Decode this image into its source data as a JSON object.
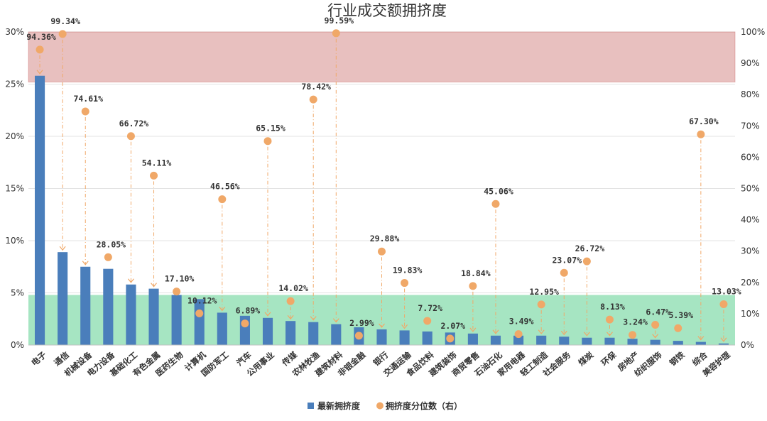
{
  "chart_data": {
    "type": "bar",
    "title": "行业成交额拥挤度",
    "categories": [
      "电子",
      "通信",
      "机械设备",
      "电力设备",
      "基础化工",
      "有色金属",
      "医药生物",
      "计算机",
      "国防军工",
      "汽车",
      "公用事业",
      "传媒",
      "农林牧渔",
      "建筑材料",
      "非银金融",
      "银行",
      "交通运输",
      "食品饮料",
      "建筑装饰",
      "商贸零售",
      "石油石化",
      "家用电器",
      "轻工制造",
      "社会服务",
      "煤炭",
      "环保",
      "房地产",
      "纺织服饰",
      "钢铁",
      "综合",
      "美容护理"
    ],
    "series": [
      {
        "name": "最新拥挤度",
        "type": "bar",
        "axis": "left",
        "color": "#4a7ebb",
        "values": [
          25.8,
          8.9,
          7.5,
          7.3,
          5.8,
          5.4,
          4.8,
          4.4,
          3.1,
          2.8,
          2.6,
          2.3,
          2.2,
          2.0,
          1.7,
          1.5,
          1.4,
          1.3,
          1.2,
          1.1,
          0.9,
          0.9,
          0.9,
          0.8,
          0.7,
          0.7,
          0.6,
          0.5,
          0.4,
          0.3,
          0.15
        ]
      },
      {
        "name": "拥挤度分位数（右）",
        "type": "scatter",
        "axis": "right",
        "color": "#f0a868",
        "values": [
          94.36,
          99.34,
          74.61,
          28.05,
          66.72,
          54.11,
          17.1,
          10.12,
          46.56,
          6.89,
          65.15,
          14.02,
          78.42,
          99.59,
          2.99,
          29.88,
          19.83,
          7.72,
          2.07,
          18.84,
          45.06,
          3.49,
          12.95,
          23.07,
          26.72,
          8.13,
          3.24,
          6.47,
          5.39,
          67.3,
          13.03
        ],
        "labels": [
          "94.36%",
          "99.34%",
          "74.61%",
          "28.05%",
          "66.72%",
          "54.11%",
          "17.10%",
          "10.12%",
          "46.56%",
          "6.89%",
          "65.15%",
          "14.02%",
          "78.42%",
          "99.59%",
          "2.99%",
          "29.88%",
          "19.83%",
          "7.72%",
          "2.07%",
          "18.84%",
          "45.06%",
          "3.49%",
          "12.95%",
          "23.07%",
          "26.72%",
          "8.13%",
          "3.24%",
          "6.47%",
          "5.39%",
          "67.30%",
          "13.03%"
        ]
      }
    ],
    "y_left": {
      "min": 0,
      "max": 30,
      "step": 5,
      "ticks": [
        "0%",
        "5%",
        "10%",
        "15%",
        "20%",
        "25%",
        "30%"
      ]
    },
    "y_right": {
      "min": 0,
      "max": 100,
      "step": 10,
      "ticks": [
        "0%",
        "10%",
        "20%",
        "30%",
        "40%",
        "50%",
        "60%",
        "70%",
        "80%",
        "90%",
        "100%"
      ]
    },
    "bands": [
      {
        "axis": "right",
        "from": 84,
        "to": 100,
        "color": "#d99694",
        "opacity": 0.6
      },
      {
        "axis": "right",
        "from": 0,
        "to": 16,
        "color": "#5ccf8f",
        "opacity": 0.55
      }
    ],
    "grid": true,
    "legend": "bottom-center"
  }
}
